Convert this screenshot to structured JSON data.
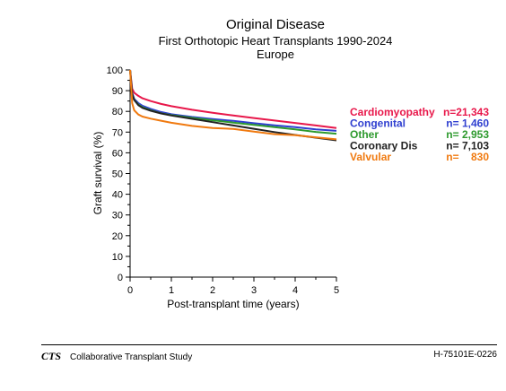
{
  "chart_data": {
    "type": "line",
    "title": "Original Disease",
    "subtitle": "First Orthotopic Heart Transplants 1990-2024",
    "subtitle2": "Europe",
    "xlabel": "Post-transplant time (years)",
    "ylabel": "Graft survival (%)",
    "xlim": [
      0,
      5
    ],
    "ylim": [
      0,
      100
    ],
    "xticks": [
      "0",
      "1",
      "2",
      "3",
      "4",
      "5"
    ],
    "yticks": [
      "0",
      "10",
      "20",
      "30",
      "40",
      "50",
      "60",
      "70",
      "80",
      "90",
      "100"
    ],
    "grid": false,
    "legend_position": "right",
    "series": [
      {
        "name": "Cardiomyopathy",
        "n_label": "n=21,343",
        "color": "#e8174a",
        "x": [
          0,
          0.05,
          0.1,
          0.2,
          0.3,
          0.5,
          0.75,
          1,
          1.5,
          2,
          2.5,
          3,
          3.5,
          4,
          4.5,
          5
        ],
        "y": [
          100,
          91,
          89,
          87.5,
          86.3,
          85,
          83.6,
          82.5,
          80.8,
          79.3,
          78,
          76.8,
          75.6,
          74.4,
          73.2,
          72
        ]
      },
      {
        "name": "Congenital",
        "n_label": "n= 1,460",
        "color": "#2f3fd0",
        "x": [
          0,
          0.05,
          0.1,
          0.2,
          0.3,
          0.5,
          0.75,
          1,
          1.5,
          2,
          2.5,
          3,
          3.5,
          4,
          4.5,
          5
        ],
        "y": [
          100,
          89,
          86,
          84,
          82.7,
          81.2,
          79.7,
          78.6,
          77.3,
          76.3,
          75.4,
          74.3,
          73.3,
          72.4,
          71.3,
          70.6
        ]
      },
      {
        "name": "Other",
        "n_label": "n= 2,953",
        "color": "#2e9a2e",
        "x": [
          0,
          0.05,
          0.1,
          0.2,
          0.3,
          0.5,
          0.75,
          1,
          1.5,
          2,
          2.5,
          3,
          3.5,
          4,
          4.5,
          5
        ],
        "y": [
          100,
          88,
          85.5,
          83.3,
          82,
          80.5,
          79.1,
          78.2,
          76.9,
          75.7,
          74.6,
          73.5,
          72.4,
          71.3,
          70.1,
          69.2
        ]
      },
      {
        "name": "Coronary Dis",
        "n_label": "n= 7,103",
        "color": "#222222",
        "x": [
          0,
          0.05,
          0.1,
          0.2,
          0.3,
          0.5,
          0.75,
          1,
          1.5,
          2,
          2.5,
          3,
          3.5,
          4,
          4.5,
          5
        ],
        "y": [
          100,
          88.5,
          85.5,
          83,
          81.7,
          80.3,
          79,
          78,
          76.4,
          74.8,
          73.2,
          71.6,
          70,
          68.6,
          67.3,
          66
        ]
      },
      {
        "name": "Valvular",
        "n_label": "n=    830",
        "color": "#f07a10",
        "x": [
          0,
          0.05,
          0.1,
          0.2,
          0.3,
          0.5,
          0.75,
          1,
          1.5,
          2,
          2.5,
          3,
          3.5,
          4,
          4.5,
          5
        ],
        "y": [
          100,
          84,
          80.5,
          78.5,
          77.5,
          76.5,
          75.5,
          74.5,
          73,
          72,
          71.5,
          70.2,
          69,
          68.5,
          67.5,
          66.5
        ]
      }
    ]
  },
  "footer": {
    "logo": "CTS",
    "org": "Collaborative Transplant Study",
    "code": "H-75101E-0226"
  }
}
